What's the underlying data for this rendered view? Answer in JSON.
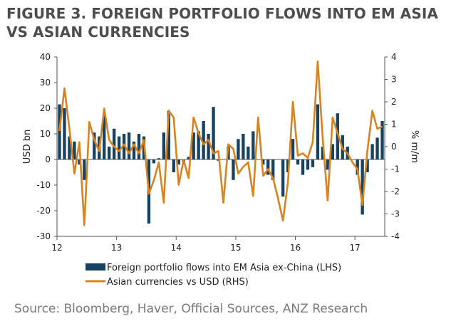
{
  "figure": {
    "title": "FIGURE 3. FOREIGN PORTFOLIO FLOWS INTO EM ASIA VS ASIAN CURRENCIES",
    "source": "Source: Bloomberg, Haver, Official Sources, ANZ Research"
  },
  "colors": {
    "bars": "#17415e",
    "line": "#d9821e",
    "axis": "#555555"
  },
  "chart_data": {
    "type": "bar+line",
    "title": "FIGURE 3. FOREIGN PORTFOLIO FLOWS INTO EM ASIA VS ASIAN CURRENCIES",
    "xlabel": "",
    "ylabel_left": "USD bn",
    "ylabel_right": "% m/m",
    "ylim_left": [
      -30,
      40
    ],
    "ylim_right": [
      -4,
      4
    ],
    "yticks_left": [
      -30,
      -20,
      -10,
      0,
      10,
      20,
      30,
      40
    ],
    "yticks_right": [
      -4,
      -3,
      -2,
      -1,
      0,
      1,
      2,
      3,
      4
    ],
    "x_start": 2012,
    "x_step_months": 1,
    "x_tick_labels": [
      {
        "label": "12",
        "index": 0
      },
      {
        "label": "13",
        "index": 12
      },
      {
        "label": "14",
        "index": 24
      },
      {
        "label": "15",
        "index": 36
      },
      {
        "label": "16",
        "index": 48
      },
      {
        "label": "17",
        "index": 60
      }
    ],
    "series": [
      {
        "name": "Foreign portfolio flows into EM Asia ex-China (LHS)",
        "kind": "bar",
        "axis": "left",
        "values": [
          21.5,
          20,
          9,
          7,
          -2,
          -8,
          0,
          10.5,
          9,
          17,
          5,
          12,
          9,
          10,
          10.5,
          7,
          10,
          9,
          -25,
          -1.5,
          0.5,
          10.5,
          19,
          -5,
          -2,
          -1,
          1,
          10.5,
          11,
          15,
          10,
          20.5,
          -0.5,
          0,
          5,
          -8,
          8,
          10,
          5,
          11,
          0,
          -2,
          -6,
          -8,
          0,
          -14.5,
          -5,
          8,
          -2,
          -6,
          -4,
          -3,
          21.5,
          5,
          -4,
          6,
          18,
          9.5,
          5,
          0,
          -6,
          -21.5,
          -5,
          6,
          8.5,
          15
        ]
      },
      {
        "name": "Asian currencies vs USD (RHS)",
        "kind": "line",
        "axis": "right",
        "values": [
          0.7,
          2.6,
          0.8,
          -1.2,
          0.2,
          -3.5,
          1.1,
          0.3,
          -0.2,
          1.7,
          0.3,
          0,
          -0.2,
          0.1,
          -0.3,
          0.1,
          -0.3,
          0.3,
          -2.1,
          -1.5,
          -0.7,
          -2.5,
          1.6,
          1.3,
          -1.7,
          -0.6,
          -1.4,
          1.3,
          0.6,
          0.1,
          0.3,
          -0.3,
          -0.2,
          -2.5,
          0.1,
          -0.1,
          -1.2,
          -0.9,
          -0.7,
          -2.2,
          1.3,
          -1.3,
          -1.0,
          -1.4,
          -2.3,
          -3.3,
          -1.6,
          2.0,
          -0.4,
          -0.3,
          -0.5,
          0.2,
          3.8,
          0.4,
          -2.4,
          1.3,
          0.6,
          -0.1,
          -0.3,
          -0.7,
          -1.0,
          -2.6,
          -0.2,
          1.6,
          0.8,
          0.9
        ]
      }
    ]
  },
  "legend": {
    "bar_label": "Foreign portfolio flows into EM Asia ex-China (LHS)",
    "line_label": "Asian currencies vs USD (RHS)"
  }
}
